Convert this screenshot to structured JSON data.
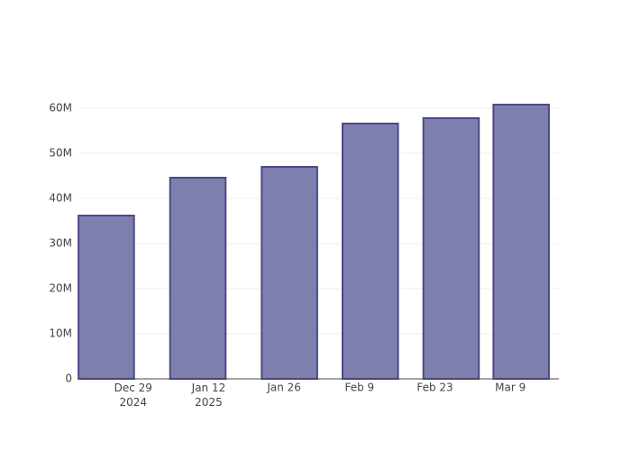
{
  "chart_data": {
    "type": "bar",
    "x": [
      "2024-12-24",
      "2025-01-10",
      "2025-01-27",
      "2025-02-11",
      "2025-02-26",
      "2025-03-11"
    ],
    "values": [
      36200000,
      44600000,
      47000000,
      56600000,
      57800000,
      60800000
    ],
    "color": "#7f7faf",
    "xlim": [
      "2024-12-19",
      "2025-03-18"
    ],
    "xticks": [
      {
        "value": "2024-12-29",
        "label": "Dec 29\n2024"
      },
      {
        "value": "2025-01-12",
        "label": "Jan 12\n2025"
      },
      {
        "value": "2025-01-26",
        "label": "Jan 26"
      },
      {
        "value": "2025-02-09",
        "label": "Feb 9"
      },
      {
        "value": "2025-02-23",
        "label": "Feb 23"
      },
      {
        "value": "2025-03-09",
        "label": "Mar 9"
      }
    ],
    "ylim": [
      0,
      64000000
    ],
    "yticks": [
      0,
      {
        "value": 10000000,
        "label": "10M"
      },
      {
        "value": 20000000,
        "label": "20M"
      },
      {
        "value": 30000000,
        "label": "30M"
      },
      {
        "value": 40000000,
        "label": "40M"
      },
      {
        "value": 50000000,
        "label": "50M"
      },
      {
        "value": 60000000,
        "label": "60M"
      }
    ],
    "grid": true
  }
}
